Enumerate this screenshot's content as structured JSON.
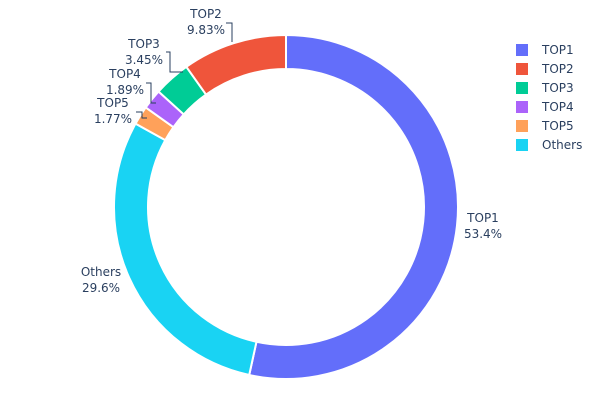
{
  "chart_data": {
    "type": "pie",
    "hole": true,
    "labels": [
      "TOP1",
      "TOP2",
      "TOP3",
      "TOP4",
      "TOP5",
      "Others"
    ],
    "values": [
      53.4,
      9.83,
      3.45,
      1.89,
      1.77,
      29.6
    ],
    "value_labels": [
      "53.4%",
      "9.83%",
      "3.45%",
      "1.89%",
      "1.77%",
      "29.6%"
    ],
    "colors": [
      "#636efa",
      "#EF553B",
      "#00cc96",
      "#ab63fa",
      "#FFA15A",
      "#19d3f3"
    ],
    "legend_position": "top-right"
  }
}
